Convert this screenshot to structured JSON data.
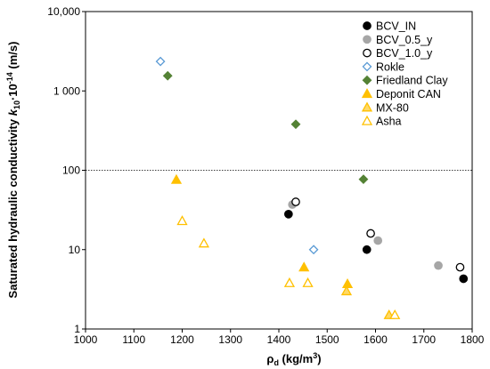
{
  "chart_data": {
    "type": "scatter",
    "title": "",
    "xlabel_main": "ρ",
    "xlabel_sub": "d",
    "xlabel_unit_pre": " (kg/m",
    "xlabel_unit_sup": "3",
    "xlabel_unit_post": ")",
    "ylabel_pre": "Saturated hydraulic conductivity ",
    "ylabel_k": "k",
    "ylabel_k_sub": "10",
    "ylabel_dot": "·10",
    "ylabel_exp": "-14",
    "ylabel_unit": " (m/s)",
    "xlim": [
      1000,
      1800
    ],
    "ylim": [
      1,
      10000
    ],
    "yscale": "log",
    "x_ticks": [
      1000,
      1100,
      1200,
      1300,
      1400,
      1500,
      1600,
      1700,
      1800
    ],
    "y_ticks": [
      {
        "value": 1,
        "label": "1"
      },
      {
        "value": 10,
        "label": "10"
      },
      {
        "value": 100,
        "label": "100"
      },
      {
        "value": 1000,
        "label": "1 000"
      },
      {
        "value": 10000,
        "label": "10,000"
      }
    ],
    "reference_line": 100,
    "grid": false,
    "legend_position": "top-right",
    "series": [
      {
        "name": "BCV_IN",
        "marker": "circle",
        "fill": "#000000",
        "stroke": "#000000",
        "points": [
          [
            1420,
            28
          ],
          [
            1582,
            10
          ],
          [
            1782,
            4.3
          ]
        ]
      },
      {
        "name": "BCV_0.5_y",
        "marker": "circle",
        "fill": "#a6a6a6",
        "stroke": "#a6a6a6",
        "points": [
          [
            1428,
            37
          ],
          [
            1605,
            13
          ],
          [
            1730,
            6.3
          ]
        ]
      },
      {
        "name": "BCV_1.0_y",
        "marker": "circle",
        "fill": "#ffffff",
        "stroke": "#000000",
        "points": [
          [
            1435,
            40
          ],
          [
            1590,
            16
          ],
          [
            1775,
            6
          ]
        ]
      },
      {
        "name": "Rokle",
        "marker": "diamond",
        "fill": "#ffffff",
        "stroke": "#5b9bd5",
        "points": [
          [
            1155,
            2350
          ],
          [
            1472,
            10
          ]
        ]
      },
      {
        "name": "Friedland Clay",
        "marker": "diamond",
        "fill": "#548235",
        "stroke": "#548235",
        "points": [
          [
            1170,
            1550
          ],
          [
            1435,
            380
          ],
          [
            1575,
            77
          ]
        ]
      },
      {
        "name": "Deponit CAN",
        "marker": "triangle",
        "fill": "#ffc000",
        "stroke": "#ffc000",
        "points": [
          [
            1188,
            76
          ],
          [
            1452,
            6
          ],
          [
            1542,
            3.7
          ]
        ]
      },
      {
        "name": "MX-80",
        "marker": "triangle",
        "fill": "#ffd966",
        "stroke": "#ffc000",
        "points": [
          [
            1540,
            3
          ],
          [
            1628,
            1.5
          ]
        ]
      },
      {
        "name": "Asha",
        "marker": "triangle",
        "fill": "#ffffff",
        "stroke": "#ffc000",
        "points": [
          [
            1200,
            23
          ],
          [
            1245,
            12
          ],
          [
            1422,
            3.8
          ],
          [
            1460,
            3.8
          ],
          [
            1640,
            1.5
          ]
        ]
      }
    ]
  }
}
